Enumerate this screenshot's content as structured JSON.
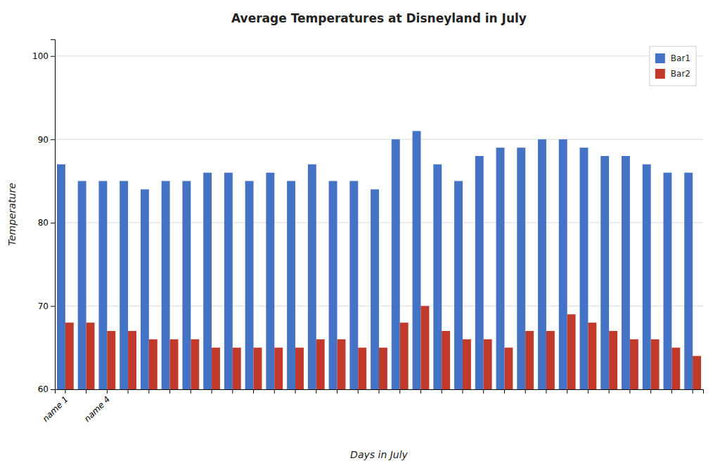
{
  "chart_data": {
    "type": "bar",
    "title": "Average Temperatures at Disneyland in July",
    "xlabel": "Days in July",
    "ylabel": "Temperature",
    "categories": [
      "name 1",
      null,
      "name 4",
      null,
      null,
      null,
      null,
      null,
      null,
      null,
      null,
      null,
      null,
      null,
      null,
      null,
      null,
      null,
      null,
      null,
      null,
      null,
      null,
      null,
      null,
      null,
      null,
      null,
      null,
      null,
      null
    ],
    "series": [
      {
        "name": "Bar1",
        "color": "#4472C4",
        "values": [
          87,
          85,
          85,
          85,
          84,
          85,
          85,
          86,
          86,
          85,
          86,
          85,
          87,
          85,
          85,
          84,
          90,
          91,
          87,
          85,
          88,
          89,
          89,
          90,
          90,
          89,
          88,
          88,
          87,
          86,
          86
        ]
      },
      {
        "name": "Bar2",
        "color": "#C0392B",
        "values": [
          68,
          68,
          67,
          67,
          66,
          66,
          66,
          65,
          65,
          65,
          65,
          65,
          66,
          66,
          65,
          65,
          68,
          70,
          67,
          66,
          66,
          65,
          67,
          67,
          69,
          68,
          67,
          66,
          66,
          65,
          64
        ]
      }
    ],
    "ylim": [
      60,
      102
    ],
    "yticks": [
      60,
      70,
      80,
      90,
      100
    ],
    "grid": true,
    "legend": "upper right"
  }
}
